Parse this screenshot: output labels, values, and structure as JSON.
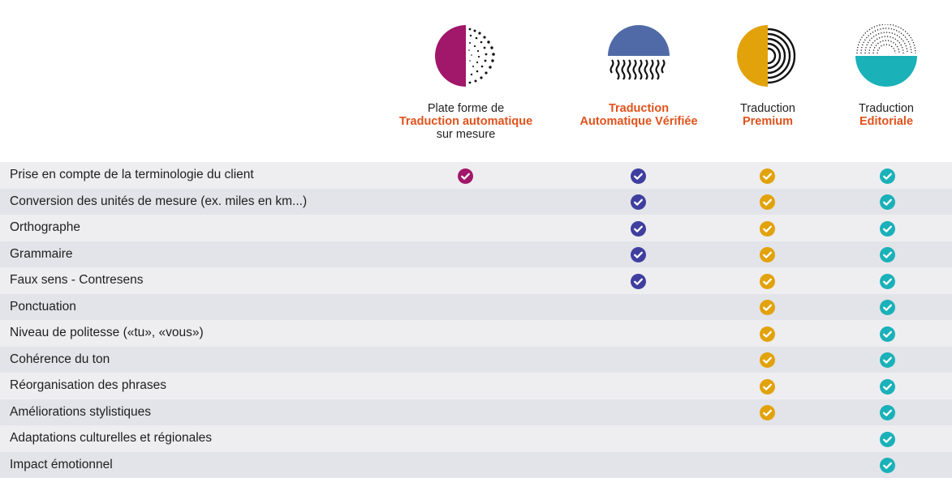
{
  "columns": [
    {
      "id": "plat",
      "line1": "Plate forme de",
      "line2": "Traduction automatique",
      "line3": "sur mesure",
      "color": "#a1176a",
      "icon": "magenta-halftone-circle-icon"
    },
    {
      "id": "ver",
      "line1": "",
      "line2": "Traduction",
      "line3": "",
      "line2b": "Automatique Vérifiée",
      "color": "#3f3fa0",
      "icon": "blue-wave-circle-icon"
    },
    {
      "id": "prem",
      "line1": "Traduction",
      "line2": "Premium",
      "line3": "",
      "color": "#e2a20a",
      "icon": "gold-fingerprint-circle-icon"
    },
    {
      "id": "edit",
      "line1": "Traduction",
      "line2": "Editoriale",
      "line3": "",
      "color": "#1ab1b9",
      "icon": "teal-dotted-circle-icon"
    }
  ],
  "check_colors": {
    "plat": "#a1176a",
    "ver": "#3f3fa0",
    "prem": "#e2a20a",
    "edit": "#1ab1b9"
  },
  "rows": [
    {
      "label": "Prise en compte de la terminologie du client",
      "checks": [
        "plat",
        "ver",
        "prem",
        "edit"
      ]
    },
    {
      "label": "Conversion des unités de mesure (ex. miles en km...)",
      "checks": [
        "ver",
        "prem",
        "edit"
      ]
    },
    {
      "label": "Orthographe",
      "checks": [
        "ver",
        "prem",
        "edit"
      ]
    },
    {
      "label": "Grammaire",
      "checks": [
        "ver",
        "prem",
        "edit"
      ]
    },
    {
      "label": "Faux sens - Contresens",
      "checks": [
        "ver",
        "prem",
        "edit"
      ]
    },
    {
      "label": "Ponctuation",
      "checks": [
        "prem",
        "edit"
      ]
    },
    {
      "label": "Niveau de politesse («tu», «vous»)",
      "checks": [
        "prem",
        "edit"
      ]
    },
    {
      "label": "Cohérence du ton",
      "checks": [
        "prem",
        "edit"
      ]
    },
    {
      "label": "Réorganisation des phrases",
      "checks": [
        "prem",
        "edit"
      ]
    },
    {
      "label": "Améliorations stylistiques",
      "checks": [
        "prem",
        "edit"
      ]
    },
    {
      "label": "Adaptations culturelles et régionales",
      "checks": [
        "edit"
      ]
    },
    {
      "label": "Impact émotionnel",
      "checks": [
        "edit"
      ]
    }
  ]
}
